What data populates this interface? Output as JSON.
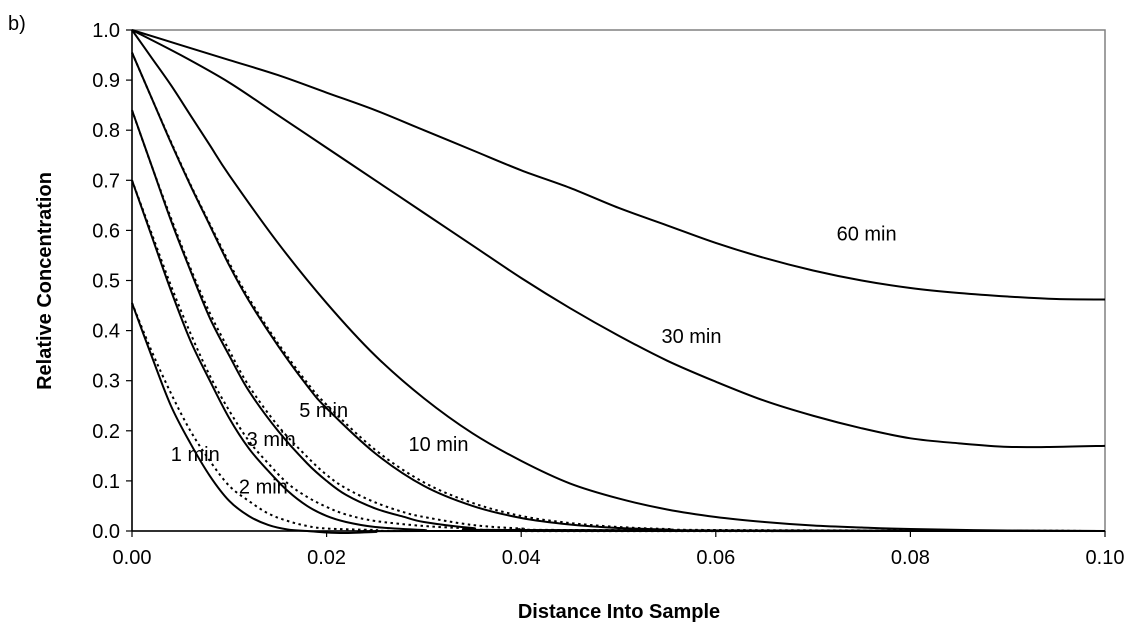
{
  "panel_label": "b)",
  "chart_data": {
    "type": "line",
    "title": "",
    "xlabel": "Distance Into Sample",
    "ylabel": "Relative Concentration",
    "xlim": [
      0,
      0.1
    ],
    "ylim": [
      0,
      1
    ],
    "x_ticks": [
      "0.00",
      "0.02",
      "0.04",
      "0.06",
      "0.08",
      "0.10"
    ],
    "y_ticks": [
      "0.0",
      "0.1",
      "0.2",
      "0.3",
      "0.4",
      "0.5",
      "0.6",
      "0.7",
      "0.8",
      "0.9",
      "1.0"
    ],
    "grid": false,
    "legend": "none",
    "line_color": "#000000",
    "frame_color": "#808080",
    "series": [
      {
        "name": "1 min",
        "label_text": "1 min",
        "label_at": [
          0.0065,
          0.14
        ],
        "solid": [
          [
            0,
            0.455
          ],
          [
            0.002,
            0.35
          ],
          [
            0.004,
            0.25
          ],
          [
            0.006,
            0.175
          ],
          [
            0.008,
            0.11
          ],
          [
            0.01,
            0.06
          ],
          [
            0.012,
            0.03
          ],
          [
            0.014,
            0.012
          ],
          [
            0.016,
            0.003
          ],
          [
            0.018,
            0
          ],
          [
            0.02,
            -0.003
          ],
          [
            0.022,
            -0.004
          ],
          [
            0.025,
            -0.002
          ],
          [
            0.03,
            0
          ],
          [
            0.1,
            0
          ]
        ],
        "dotted": [
          [
            0,
            0.455
          ],
          [
            0.002,
            0.36
          ],
          [
            0.004,
            0.275
          ],
          [
            0.006,
            0.2
          ],
          [
            0.008,
            0.14
          ],
          [
            0.01,
            0.09
          ],
          [
            0.012,
            0.06
          ],
          [
            0.014,
            0.035
          ],
          [
            0.016,
            0.02
          ],
          [
            0.018,
            0.01
          ],
          [
            0.02,
            0.005
          ],
          [
            0.025,
            0.002
          ],
          [
            0.03,
            0
          ],
          [
            0.1,
            0
          ]
        ]
      },
      {
        "name": "2 min",
        "label_text": "2 min",
        "label_at": [
          0.0135,
          0.075
        ],
        "solid": [
          [
            0,
            0.7
          ],
          [
            0.002,
            0.59
          ],
          [
            0.004,
            0.48
          ],
          [
            0.006,
            0.38
          ],
          [
            0.008,
            0.3
          ],
          [
            0.01,
            0.225
          ],
          [
            0.012,
            0.165
          ],
          [
            0.014,
            0.12
          ],
          [
            0.016,
            0.08
          ],
          [
            0.018,
            0.05
          ],
          [
            0.02,
            0.03
          ],
          [
            0.022,
            0.018
          ],
          [
            0.025,
            0.008
          ],
          [
            0.03,
            0.002
          ],
          [
            0.035,
            0
          ],
          [
            0.1,
            0
          ]
        ],
        "dotted": [
          [
            0,
            0.7
          ],
          [
            0.002,
            0.595
          ],
          [
            0.004,
            0.49
          ],
          [
            0.006,
            0.395
          ],
          [
            0.008,
            0.31
          ],
          [
            0.01,
            0.24
          ],
          [
            0.012,
            0.18
          ],
          [
            0.014,
            0.135
          ],
          [
            0.016,
            0.095
          ],
          [
            0.018,
            0.068
          ],
          [
            0.02,
            0.048
          ],
          [
            0.022,
            0.033
          ],
          [
            0.025,
            0.02
          ],
          [
            0.03,
            0.01
          ],
          [
            0.035,
            0.005
          ],
          [
            0.04,
            0.002
          ],
          [
            0.1,
            0
          ]
        ]
      },
      {
        "name": "3 min",
        "label_text": "3 min",
        "label_at": [
          0.0143,
          0.17
        ],
        "solid": [
          [
            0,
            0.84
          ],
          [
            0.002,
            0.73
          ],
          [
            0.004,
            0.62
          ],
          [
            0.006,
            0.52
          ],
          [
            0.008,
            0.425
          ],
          [
            0.01,
            0.35
          ],
          [
            0.012,
            0.28
          ],
          [
            0.015,
            0.2
          ],
          [
            0.018,
            0.135
          ],
          [
            0.02,
            0.1
          ],
          [
            0.022,
            0.072
          ],
          [
            0.025,
            0.045
          ],
          [
            0.028,
            0.028
          ],
          [
            0.03,
            0.018
          ],
          [
            0.035,
            0.006
          ],
          [
            0.04,
            0.002
          ],
          [
            0.1,
            0
          ]
        ],
        "dotted": [
          [
            0,
            0.84
          ],
          [
            0.002,
            0.73
          ],
          [
            0.004,
            0.625
          ],
          [
            0.006,
            0.525
          ],
          [
            0.008,
            0.435
          ],
          [
            0.01,
            0.36
          ],
          [
            0.012,
            0.29
          ],
          [
            0.015,
            0.21
          ],
          [
            0.018,
            0.148
          ],
          [
            0.02,
            0.112
          ],
          [
            0.022,
            0.085
          ],
          [
            0.025,
            0.057
          ],
          [
            0.028,
            0.037
          ],
          [
            0.03,
            0.028
          ],
          [
            0.035,
            0.012
          ],
          [
            0.04,
            0.005
          ],
          [
            0.045,
            0.002
          ],
          [
            0.1,
            0
          ]
        ]
      },
      {
        "name": "5 min",
        "label_text": "5 min",
        "label_at": [
          0.0197,
          0.228
        ],
        "solid": [
          [
            0,
            0.955
          ],
          [
            0.002,
            0.865
          ],
          [
            0.004,
            0.775
          ],
          [
            0.006,
            0.69
          ],
          [
            0.008,
            0.61
          ],
          [
            0.01,
            0.53
          ],
          [
            0.012,
            0.46
          ],
          [
            0.015,
            0.37
          ],
          [
            0.018,
            0.29
          ],
          [
            0.02,
            0.245
          ],
          [
            0.025,
            0.155
          ],
          [
            0.03,
            0.09
          ],
          [
            0.035,
            0.05
          ],
          [
            0.04,
            0.026
          ],
          [
            0.045,
            0.013
          ],
          [
            0.05,
            0.006
          ],
          [
            0.055,
            0.003
          ],
          [
            0.06,
            0.001
          ],
          [
            0.1,
            0
          ]
        ],
        "dotted": [
          [
            0,
            0.955
          ],
          [
            0.002,
            0.865
          ],
          [
            0.004,
            0.777
          ],
          [
            0.006,
            0.692
          ],
          [
            0.008,
            0.613
          ],
          [
            0.01,
            0.535
          ],
          [
            0.012,
            0.465
          ],
          [
            0.015,
            0.375
          ],
          [
            0.018,
            0.296
          ],
          [
            0.02,
            0.252
          ],
          [
            0.025,
            0.162
          ],
          [
            0.03,
            0.097
          ],
          [
            0.035,
            0.056
          ],
          [
            0.04,
            0.03
          ],
          [
            0.045,
            0.016
          ],
          [
            0.05,
            0.008
          ],
          [
            0.055,
            0.004
          ],
          [
            0.06,
            0.002
          ],
          [
            0.1,
            0
          ]
        ]
      },
      {
        "name": "10 min",
        "label_text": "10 min",
        "label_at": [
          0.0315,
          0.16
        ],
        "solid": [
          [
            0,
            1
          ],
          [
            0.002,
            0.945
          ],
          [
            0.004,
            0.89
          ],
          [
            0.006,
            0.83
          ],
          [
            0.008,
            0.77
          ],
          [
            0.01,
            0.71
          ],
          [
            0.015,
            0.575
          ],
          [
            0.02,
            0.455
          ],
          [
            0.025,
            0.35
          ],
          [
            0.03,
            0.265
          ],
          [
            0.035,
            0.195
          ],
          [
            0.04,
            0.14
          ],
          [
            0.045,
            0.095
          ],
          [
            0.05,
            0.065
          ],
          [
            0.055,
            0.043
          ],
          [
            0.06,
            0.028
          ],
          [
            0.065,
            0.018
          ],
          [
            0.07,
            0.011
          ],
          [
            0.075,
            0.007
          ],
          [
            0.08,
            0.004
          ],
          [
            0.09,
            0.001
          ],
          [
            0.1,
            0
          ]
        ],
        "dotted": []
      },
      {
        "name": "30 min",
        "label_text": "30 min",
        "label_at": [
          0.0575,
          0.375
        ],
        "solid": [
          [
            0,
            1
          ],
          [
            0.005,
            0.95
          ],
          [
            0.01,
            0.895
          ],
          [
            0.015,
            0.83
          ],
          [
            0.02,
            0.765
          ],
          [
            0.025,
            0.7
          ],
          [
            0.03,
            0.635
          ],
          [
            0.035,
            0.57
          ],
          [
            0.04,
            0.505
          ],
          [
            0.045,
            0.445
          ],
          [
            0.05,
            0.39
          ],
          [
            0.055,
            0.34
          ],
          [
            0.06,
            0.298
          ],
          [
            0.065,
            0.26
          ],
          [
            0.07,
            0.23
          ],
          [
            0.075,
            0.205
          ],
          [
            0.08,
            0.185
          ],
          [
            0.085,
            0.175
          ],
          [
            0.09,
            0.168
          ],
          [
            0.095,
            0.168
          ],
          [
            0.1,
            0.17
          ]
        ],
        "dotted": []
      },
      {
        "name": "60 min",
        "label_text": "60 min",
        "label_at": [
          0.0755,
          0.58
        ],
        "solid": [
          [
            0,
            1
          ],
          [
            0.005,
            0.97
          ],
          [
            0.01,
            0.94
          ],
          [
            0.015,
            0.91
          ],
          [
            0.02,
            0.875
          ],
          [
            0.025,
            0.84
          ],
          [
            0.03,
            0.8
          ],
          [
            0.035,
            0.76
          ],
          [
            0.04,
            0.72
          ],
          [
            0.045,
            0.685
          ],
          [
            0.05,
            0.645
          ],
          [
            0.055,
            0.61
          ],
          [
            0.06,
            0.575
          ],
          [
            0.065,
            0.545
          ],
          [
            0.07,
            0.52
          ],
          [
            0.075,
            0.5
          ],
          [
            0.08,
            0.485
          ],
          [
            0.085,
            0.475
          ],
          [
            0.09,
            0.468
          ],
          [
            0.095,
            0.463
          ],
          [
            0.1,
            0.462
          ]
        ],
        "dotted": []
      }
    ]
  }
}
